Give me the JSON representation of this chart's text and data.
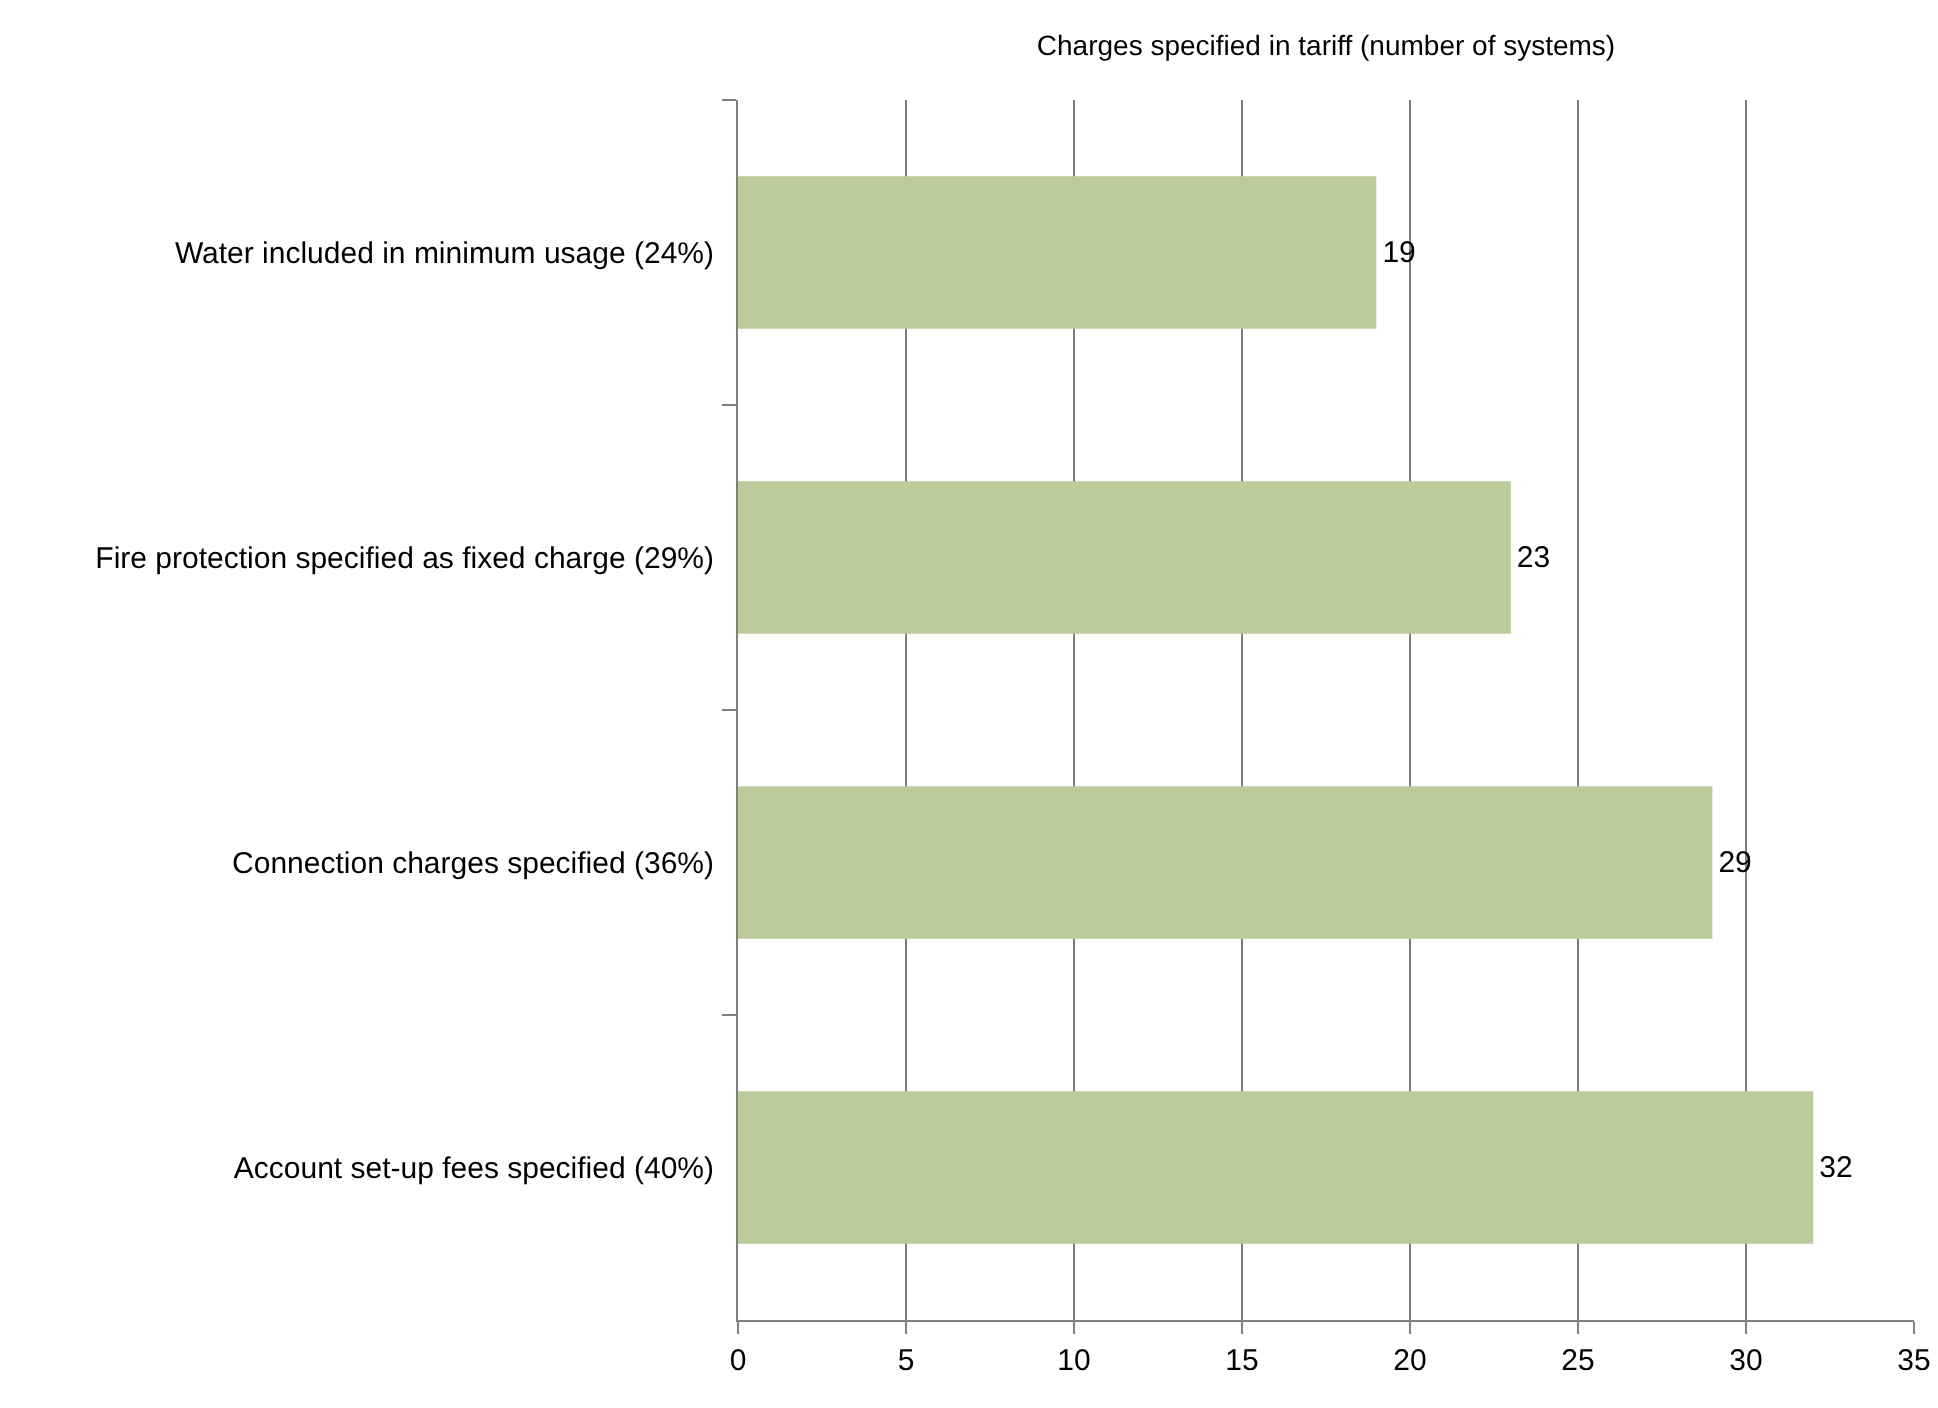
{
  "chart_data": {
    "type": "bar",
    "orientation": "horizontal",
    "title": "Charges specified in tariff (number of systems)",
    "categories": [
      "Water included in minimum usage (24%)",
      "Fire protection specified as fixed charge (29%)",
      "Connection charges specified (36%)",
      "Account set-up fees specified (40%)"
    ],
    "values": [
      19,
      23,
      29,
      32
    ],
    "color": "#bccb9c",
    "xlim": [
      0,
      35
    ],
    "xticks": [
      0,
      5,
      10,
      15,
      20,
      25,
      30,
      35
    ],
    "grid": "x",
    "data_labels": true
  }
}
